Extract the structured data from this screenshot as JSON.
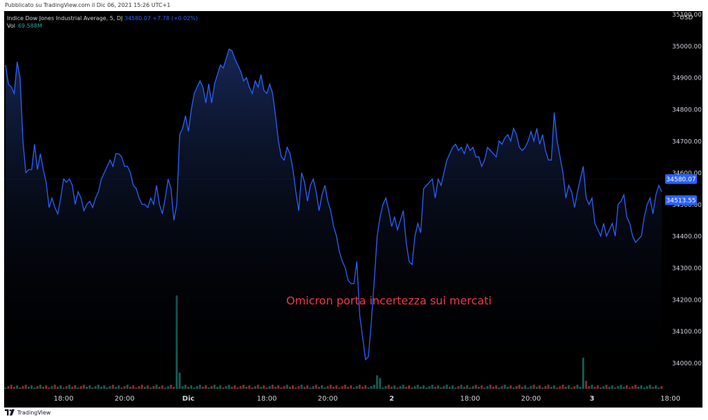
{
  "header": {
    "published": "Pubblicato su TradingView.com il Dic 06, 2021 15:26 UTC+1"
  },
  "legend": {
    "title": "Indice Dow Jones Industrial Average, 5, DJ",
    "last_value": "34580.07",
    "change": "+7.78 (+0.02%)",
    "vol_label": "Vol",
    "vol_value": "69.588M"
  },
  "currency": "USD",
  "annotation": "Omicron porta incertezza sui mercati",
  "price_tags": [
    {
      "label": "34580.07",
      "value": 34580.07,
      "color": "#2962ff"
    },
    {
      "label": "34513.55",
      "value": 34513.55,
      "color": "#2962ff"
    }
  ],
  "footer": {
    "brand": "TradingView"
  },
  "colors": {
    "line": "#2962ff",
    "volume_up": "#26a69a",
    "volume_down": "#ef5350",
    "annotation": "#f23645",
    "background": "#000000"
  },
  "chart_data": {
    "type": "area",
    "ylim": [
      33920,
      35110
    ],
    "y_ticks": [
      34000,
      34100,
      34200,
      34300,
      34400,
      34500,
      34600,
      34700,
      34800,
      34900,
      35000
    ],
    "y_tick_labels": [
      "34000.00",
      "34100.00",
      "34200.00",
      "34300.00",
      "34400.00",
      "34500.00",
      "34600.00",
      "34700.00",
      "34800.00",
      "34900.00",
      "35000.00"
    ],
    "top_tick_label": "35100.00",
    "x_tick_labels": [
      {
        "label": "18:00",
        "i": 20,
        "bold": false
      },
      {
        "label": "20:00",
        "i": 41,
        "bold": false
      },
      {
        "label": "Dic",
        "i": 63,
        "bold": true
      },
      {
        "label": "18:00",
        "i": 90,
        "bold": false
      },
      {
        "label": "20:00",
        "i": 111,
        "bold": false
      },
      {
        "label": "2",
        "i": 133,
        "bold": true
      },
      {
        "label": "18:00",
        "i": 160,
        "bold": false
      },
      {
        "label": "20:00",
        "i": 181,
        "bold": false
      },
      {
        "label": "3",
        "i": 202,
        "bold": true
      },
      {
        "label": "18:00",
        "i": 229,
        "bold": false
      }
    ],
    "price": [
      34940,
      34880,
      34870,
      34850,
      34950,
      34900,
      34700,
      34600,
      34610,
      34610,
      34690,
      34610,
      34660,
      34610,
      34570,
      34490,
      34520,
      34490,
      34470,
      34520,
      34580,
      34570,
      34580,
      34560,
      34500,
      34540,
      34520,
      34480,
      34500,
      34510,
      34490,
      34520,
      34540,
      34580,
      34600,
      34620,
      34640,
      34620,
      34660,
      34660,
      34650,
      34620,
      34620,
      34600,
      34560,
      34550,
      34520,
      34500,
      34500,
      34490,
      34520,
      34500,
      34560,
      34500,
      34470,
      34520,
      34580,
      34550,
      34450,
      34500,
      34720,
      34740,
      34780,
      34730,
      34800,
      34850,
      34870,
      34890,
      34870,
      34820,
      34880,
      34820,
      34880,
      34910,
      34940,
      34930,
      34960,
      34990,
      34985,
      34960,
      34940,
      34920,
      34890,
      34900,
      34870,
      34850,
      34890,
      34870,
      34910,
      34860,
      34850,
      34880,
      34850,
      34780,
      34700,
      34650,
      34640,
      34680,
      34660,
      34610,
      34540,
      34480,
      34600,
      34570,
      34510,
      34560,
      34580,
      34540,
      34480,
      34530,
      34560,
      34510,
      34480,
      34430,
      34400,
      34350,
      34320,
      34300,
      34260,
      34250,
      34250,
      34320,
      34150,
      34080,
      34010,
      34020,
      34130,
      34260,
      34400,
      34460,
      34500,
      34520,
      34480,
      34430,
      34460,
      34420,
      34450,
      34480,
      34380,
      34320,
      34310,
      34400,
      34440,
      34410,
      34550,
      34560,
      34570,
      34580,
      34520,
      34580,
      34560,
      34600,
      34640,
      34660,
      34680,
      34690,
      34670,
      34680,
      34660,
      34690,
      34670,
      34680,
      34650,
      34650,
      34620,
      34640,
      34680,
      34670,
      34660,
      34650,
      34700,
      34690,
      34710,
      34720,
      34700,
      34740,
      34720,
      34680,
      34670,
      34680,
      34700,
      34730,
      34700,
      34740,
      34690,
      34720,
      34670,
      34640,
      34640,
      34790,
      34700,
      34650,
      34600,
      34520,
      34560,
      34540,
      34490,
      34540,
      34580,
      34620,
      34520,
      34500,
      34520,
      34440,
      34420,
      34400,
      34440,
      34400,
      34420,
      34440,
      34400,
      34500,
      34510,
      34530,
      34460,
      34440,
      34400,
      34380,
      34390,
      34400,
      34460,
      34500,
      34520,
      34470,
      34530,
      34560,
      34540
    ],
    "volume_spikes": [
      {
        "i": 59,
        "value": 69
      },
      {
        "i": 60,
        "value": 12
      },
      {
        "i": 128,
        "value": 10
      },
      {
        "i": 129,
        "value": 8
      },
      {
        "i": 199,
        "value": 23
      },
      {
        "i": 200,
        "value": 6
      }
    ]
  }
}
